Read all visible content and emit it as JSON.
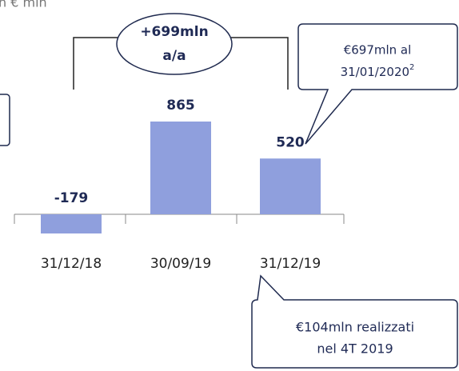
{
  "chart_data": {
    "type": "bar",
    "unit_label": "n € mln",
    "categories": [
      "31/12/18",
      "30/09/19",
      "31/12/19"
    ],
    "values": [
      -179,
      865,
      520
    ],
    "color": "#8f9fdd",
    "bracket_callout": [
      "+699mln",
      "a/a"
    ],
    "top_callout": [
      "€697mln al",
      "31/01/2020",
      "2"
    ],
    "bottom_callout": [
      "€104mln realizzati",
      "nel 4T 2019"
    ]
  }
}
